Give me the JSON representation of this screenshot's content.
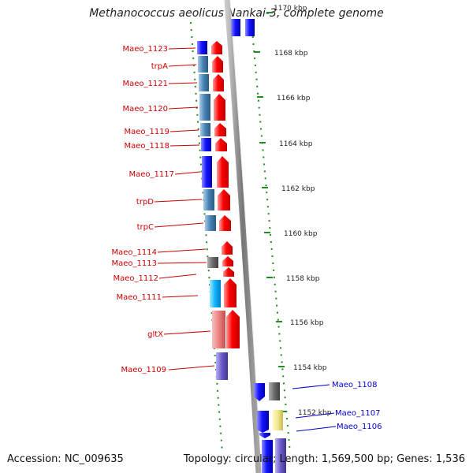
{
  "title": "Methanococcus aeolicus Nankai-3, complete genome",
  "footer": {
    "accession": "Accession: NC_009635",
    "summary": "Topology: circular; Length: 1,569,500 bp; Genes: 1,536"
  },
  "scale_labels": [
    "1170 kbp",
    "1168 kbp",
    "1166 kbp",
    "1164 kbp",
    "1162 kbp",
    "1160 kbp",
    "1158 kbp",
    "1156 kbp",
    "1154 kbp",
    "1152 kbp"
  ],
  "left_genes": [
    "Maeo_1123",
    "trpA",
    "Maeo_1121",
    "Maeo_1120",
    "Maeo_1119",
    "Maeo_1118",
    "Maeo_1117",
    "trpD",
    "trpC",
    "Maeo_1114",
    "Maeo_1113",
    "Maeo_1112",
    "Maeo_1111",
    "gltX",
    "Maeo_1109"
  ],
  "right_genes": [
    "Maeo_1108",
    "Maeo_1107",
    "Maeo_1106"
  ],
  "colors": {
    "forward_strand": "#ff0000",
    "reverse_strand": "#1a1aff",
    "label_forward": "#cc0000",
    "label_reverse": "#0000cc",
    "backbone": "#888888",
    "tick": "#228b22"
  }
}
